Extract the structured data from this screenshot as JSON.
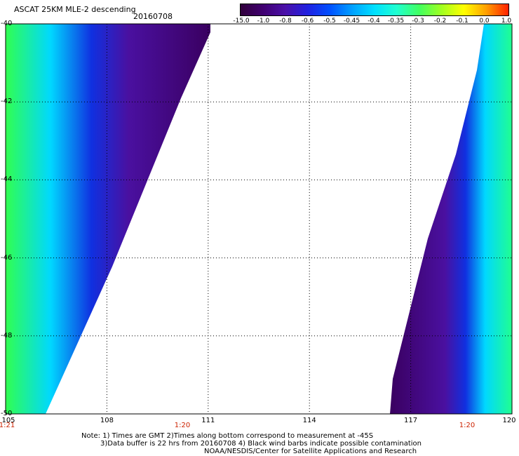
{
  "header": {
    "title": "ASCAT 25KM MLE-2 descending",
    "date": "20160708"
  },
  "colorbar": {
    "ticks": [
      "-15.0",
      "-1.0",
      "-0.8",
      "-0.6",
      "-0.5",
      "-0.45",
      "-0.4",
      "-0.35",
      "-0.3",
      "-0.2",
      "-0.1",
      "0.0",
      "1.0"
    ],
    "colors": [
      "#30003a",
      "#400070",
      "#4a10a8",
      "#2020e0",
      "#0050ff",
      "#00a0ff",
      "#00e0ff",
      "#20ffd0",
      "#40ff60",
      "#a0ff20",
      "#ffff00",
      "#ffa000",
      "#ff2000"
    ]
  },
  "map": {
    "lat_labels": [
      "-40",
      "-42",
      "-44",
      "-46",
      "-48",
      "-50"
    ],
    "lon_labels": [
      "105",
      "108",
      "111",
      "114",
      "117",
      "120"
    ],
    "time_labels": [
      "1:21",
      "1:20",
      "1:20"
    ]
  },
  "notes": {
    "line1": "Note: 1) Times are GMT 2)Times along bottom correspond to measurement at -45S",
    "line2": "3)Data buffer is 22 hrs from 20160708 4) Black wind barbs indicate possible contamination",
    "line3": "NOAA/NESDIS/Center for Satellite Applications and Research"
  }
}
